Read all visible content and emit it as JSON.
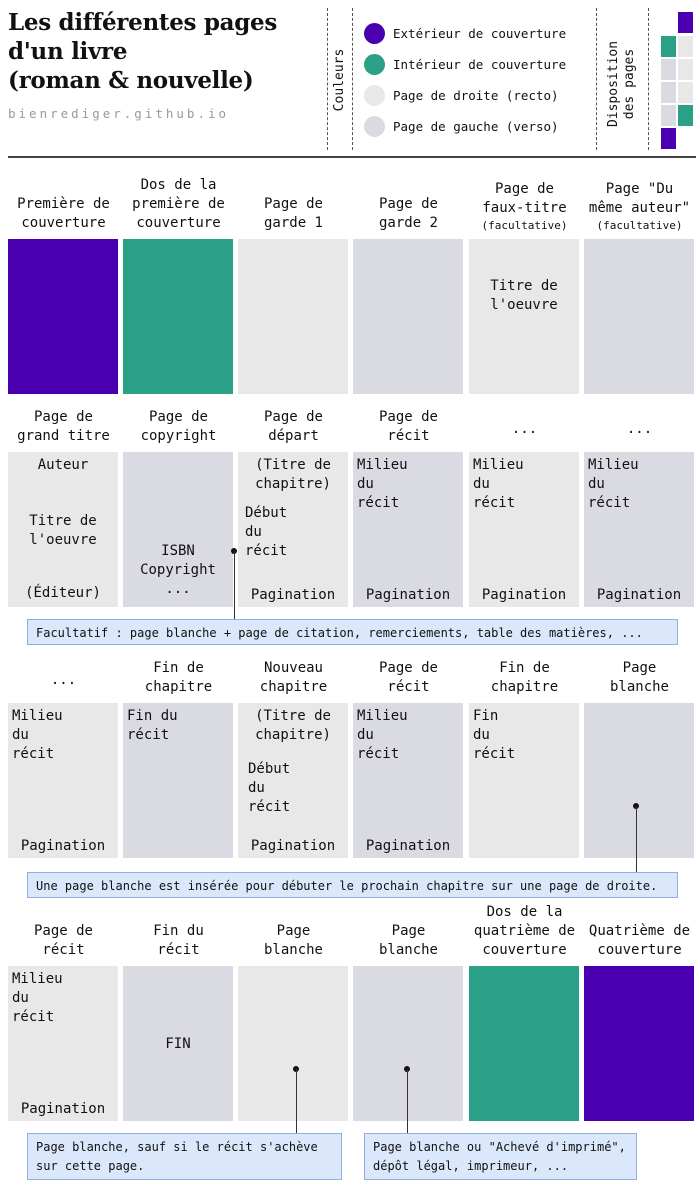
{
  "header": {
    "title_lines": [
      "Les différentes pages",
      "d'un livre",
      "(roman & nouvelle)"
    ],
    "subtitle": "bienrediger.github.io",
    "colors_label": "Couleurs",
    "layout_label_lines": [
      "Disposition",
      "des pages"
    ]
  },
  "colors": {
    "exterior": "#4a00b0",
    "interior": "#2aa086",
    "recto": "#e8e8e8",
    "verso": "#dadae2"
  },
  "legend": [
    {
      "label": "Extérieur de couverture",
      "color": "#4a00b0"
    },
    {
      "label": "Intérieur de couverture",
      "color": "#2aa086"
    },
    {
      "label": "Page de droite (recto)",
      "color": "#e8e8e8"
    },
    {
      "label": "Page de gauche (verso)",
      "color": "#dadae2"
    }
  ],
  "rows": [
    {
      "pages": [
        {
          "label": [
            "Première de",
            "couverture"
          ],
          "type": "exterior",
          "text": []
        },
        {
          "label": [
            "Dos de la",
            "première de",
            "couverture"
          ],
          "type": "interior",
          "text": []
        },
        {
          "label": [
            "Page de",
            "garde 1"
          ],
          "type": "recto",
          "text": []
        },
        {
          "label": [
            "Page de",
            "garde 2"
          ],
          "type": "verso",
          "text": []
        },
        {
          "label": [
            "Page de",
            "faux-titre"
          ],
          "optional": "(facultative)",
          "type": "recto",
          "text": [
            {
              "t": "Titre de\nl'oeuvre",
              "x": 55,
              "y": 38,
              "align": "center"
            }
          ]
        },
        {
          "label": [
            "Page \"Du",
            "même auteur\""
          ],
          "optional": "(facultative)",
          "type": "verso",
          "text": []
        }
      ]
    },
    {
      "pages": [
        {
          "label": [
            "Page de",
            "grand titre"
          ],
          "type": "recto",
          "text": [
            {
              "t": "Auteur",
              "x": 55,
              "y": 4,
              "align": "center"
            },
            {
              "t": "Titre de\nl'oeuvre",
              "x": 55,
              "y": 60,
              "align": "center"
            },
            {
              "t": "(Éditeur)",
              "x": 55,
              "y": 132,
              "align": "center"
            }
          ]
        },
        {
          "label": [
            "Page de",
            "copyright"
          ],
          "type": "verso",
          "text": [
            {
              "t": "ISBN\nCopyright\n...",
              "x": 55,
              "y": 90,
              "align": "center"
            }
          ]
        },
        {
          "label": [
            "Page de",
            "départ"
          ],
          "type": "recto",
          "text": [
            {
              "t": "(Titre de\nchapitre)",
              "x": 55,
              "y": 4,
              "align": "center"
            },
            {
              "t": "Début\ndu\nrécit",
              "x": 7,
              "y": 52,
              "align": "left"
            },
            {
              "t": "Pagination",
              "x": 55,
              "y": 134,
              "align": "center"
            }
          ]
        },
        {
          "label": [
            "Page de",
            "récit"
          ],
          "type": "verso",
          "text": [
            {
              "t": "Milieu\ndu\nrécit",
              "x": 4,
              "y": 4,
              "align": "left"
            },
            {
              "t": "Pagination",
              "x": 55,
              "y": 134,
              "align": "center"
            }
          ]
        },
        {
          "label": [
            "..."
          ],
          "type": "recto",
          "text": [
            {
              "t": "Milieu\ndu\nrécit",
              "x": 4,
              "y": 4,
              "align": "left"
            },
            {
              "t": "Pagination",
              "x": 55,
              "y": 134,
              "align": "center"
            }
          ]
        },
        {
          "label": [
            "..."
          ],
          "type": "verso",
          "text": [
            {
              "t": "Milieu\ndu\nrécit",
              "x": 4,
              "y": 4,
              "align": "left"
            },
            {
              "t": "Pagination",
              "x": 55,
              "y": 134,
              "align": "center"
            }
          ]
        }
      ]
    },
    {
      "pages": [
        {
          "label": [
            "..."
          ],
          "type": "recto",
          "text": [
            {
              "t": "Milieu\ndu\nrécit",
              "x": 4,
              "y": 4,
              "align": "left"
            },
            {
              "t": "Pagination",
              "x": 55,
              "y": 134,
              "align": "center"
            }
          ]
        },
        {
          "label": [
            "Fin de",
            "chapitre"
          ],
          "type": "verso",
          "text": [
            {
              "t": "Fin du\nrécit",
              "x": 4,
              "y": 4,
              "align": "left"
            }
          ]
        },
        {
          "label": [
            "Nouveau",
            "chapitre"
          ],
          "type": "recto",
          "text": [
            {
              "t": "(Titre de\nchapitre)",
              "x": 55,
              "y": 4,
              "align": "center"
            },
            {
              "t": "Début\ndu\nrécit",
              "x": 10,
              "y": 57,
              "align": "left"
            },
            {
              "t": "Pagination",
              "x": 55,
              "y": 134,
              "align": "center"
            }
          ]
        },
        {
          "label": [
            "Page de",
            "récit"
          ],
          "type": "verso",
          "text": [
            {
              "t": "Milieu\ndu\nrécit",
              "x": 4,
              "y": 4,
              "align": "left"
            },
            {
              "t": "Pagination",
              "x": 55,
              "y": 134,
              "align": "center"
            }
          ]
        },
        {
          "label": [
            "Fin de",
            "chapitre"
          ],
          "type": "recto",
          "text": [
            {
              "t": "Fin\ndu\nrécit",
              "x": 4,
              "y": 4,
              "align": "left"
            }
          ]
        },
        {
          "label": [
            "Page",
            "blanche"
          ],
          "type": "verso",
          "text": []
        }
      ]
    },
    {
      "pages": [
        {
          "label": [
            "Page de",
            "récit"
          ],
          "type": "recto",
          "text": [
            {
              "t": "Milieu\ndu\nrécit",
              "x": 4,
              "y": 4,
              "align": "left"
            },
            {
              "t": "Pagination",
              "x": 59,
              "y": 134,
              "align": "center"
            }
          ]
        },
        {
          "label": [
            "Fin du",
            "récit"
          ],
          "type": "verso",
          "text": [
            {
              "t": "FIN",
              "x": 55,
              "y": 69,
              "align": "center"
            }
          ]
        },
        {
          "label": [
            "Page",
            "blanche"
          ],
          "type": "recto",
          "text": []
        },
        {
          "label": [
            "Page",
            "blanche"
          ],
          "type": "verso",
          "text": []
        },
        {
          "label": [
            "Dos de la",
            "quatrième de",
            "couverture"
          ],
          "type": "interior",
          "text": []
        },
        {
          "label": [
            "Quatrième de",
            "couverture"
          ],
          "type": "exterior",
          "text": []
        }
      ]
    }
  ],
  "notes": [
    {
      "text": "Facultatif : page blanche + page de citation, remerciements, table des matières, ..."
    },
    {
      "text": "Une page blanche est insérée pour débuter le prochain chapitre sur une page de droite."
    },
    {
      "text": "Page blanche, sauf si le récit s'achève\nsur cette page."
    },
    {
      "text": "Page blanche ou \"Achevé d'imprimé\",\ndépôt légal, imprimeur, ..."
    }
  ]
}
